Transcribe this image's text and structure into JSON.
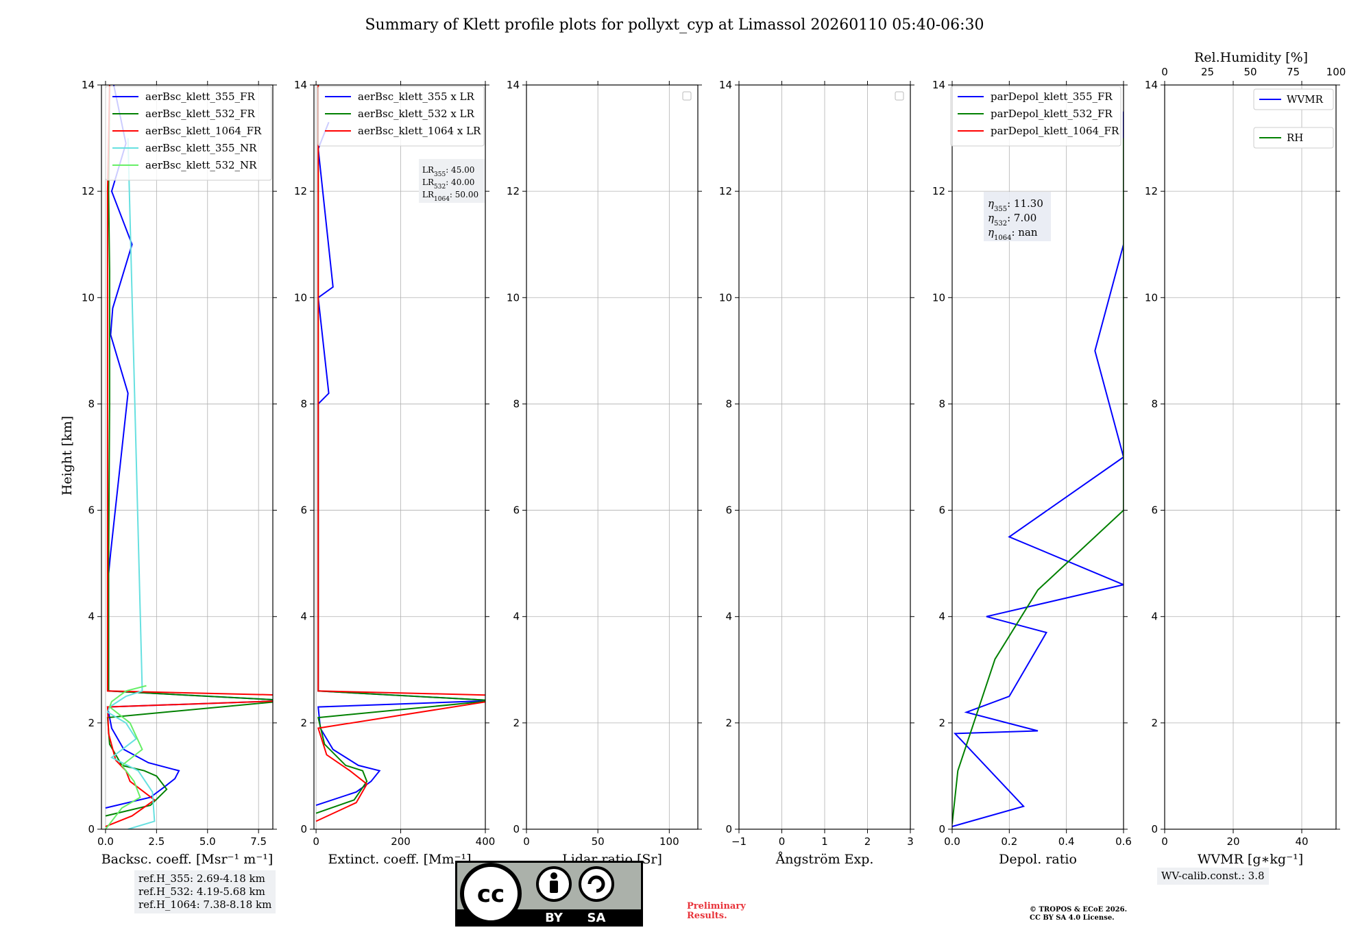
{
  "title": "Summary of Klett profile plots for pollyxt_cyp at Limassol 20260110 05:40-06:30",
  "colors": {
    "c355": "#0000ff",
    "c532": "#008000",
    "c1064": "#ff0000",
    "c355nr": "#66e0e0",
    "c532nr": "#66ee66",
    "grid": "#b0b0b0",
    "wvmr": "#0000ff",
    "rh": "#008000"
  },
  "y_axis": {
    "label": "Height [km]",
    "ylim": [
      0,
      14
    ],
    "ticks": [
      "0",
      "2",
      "4",
      "6",
      "8",
      "10",
      "12",
      "14"
    ]
  },
  "panels": [
    {
      "name": "backscatter",
      "xlabel": "Backsc. coeff. [Msr⁻¹ m⁻¹]",
      "xlim": [
        -0.2,
        8.2
      ],
      "xticks": [
        "0.0",
        "2.5",
        "5.0",
        "7.5"
      ],
      "legend": [
        "aerBsc_klett_355_FR",
        "aerBsc_klett_532_FR",
        "aerBsc_klett_1064_FR",
        "aerBsc_klett_355_NR",
        "aerBsc_klett_532_NR"
      ]
    },
    {
      "name": "extinction",
      "xlabel": "Extinct. coeff. [Mm⁻¹]",
      "xlim": [
        -5,
        400
      ],
      "xticks": [
        "0",
        "200",
        "400"
      ],
      "legend": [
        "aerBsc_klett_355 x LR",
        "aerBsc_klett_532 x LR",
        "aerBsc_klett_1064 x LR"
      ],
      "lr_note": [
        {
          "base": "LR",
          "sub": "355",
          "val": ": 45.00"
        },
        {
          "base": "LR",
          "sub": "532",
          "val": ": 40.00"
        },
        {
          "base": "LR",
          "sub": "1064",
          "val": ": 50.00"
        }
      ]
    },
    {
      "name": "lidar_ratio",
      "xlabel": "Lidar ratio [Sr]",
      "xlim": [
        0,
        120
      ],
      "xticks": [
        "0",
        "50",
        "100"
      ]
    },
    {
      "name": "angstrom",
      "xlabel": "Ångström Exp.",
      "xlim": [
        -1,
        3
      ],
      "xticks": [
        "−1",
        "0",
        "1",
        "2",
        "3"
      ]
    },
    {
      "name": "depol",
      "xlabel": "Depol. ratio",
      "xlim": [
        0,
        0.6
      ],
      "xticks": [
        "0.0",
        "0.2",
        "0.4",
        "0.6"
      ],
      "legend": [
        "parDepol_klett_355_FR",
        "parDepol_klett_532_FR",
        "parDepol_klett_1064_FR"
      ],
      "eta_note": [
        {
          "sub": "355",
          "val": ": 11.30"
        },
        {
          "sub": "532",
          "val": ": 7.00"
        },
        {
          "sub": "1064",
          "val": ": nan"
        }
      ]
    },
    {
      "name": "wvmr",
      "xlabel": "WVMR [g∗kg⁻¹]",
      "xlim": [
        0,
        50
      ],
      "xticks": [
        "0",
        "20",
        "40"
      ],
      "top_label": "Rel.Humidity [%]",
      "top_ticks": [
        "0",
        "25",
        "50",
        "75",
        "100"
      ],
      "legend": [
        "WVMR",
        "RH"
      ]
    }
  ],
  "ref_heights": [
    "ref.H_355: 2.69-4.18 km",
    "ref.H_532: 4.19-5.68 km",
    "ref.H_1064: 7.38-8.18 km"
  ],
  "wv_calib": "WV-calib.const.: 3.8",
  "preliminary": [
    "Preliminary",
    "Results."
  ],
  "copyright": [
    "© TROPOS & ECoE 2026.",
    "CC BY SA 4.0 License."
  ],
  "cc_badge": {
    "by": "BY",
    "sa": "SA",
    "cc": "cc"
  },
  "chart_data": {
    "type": "line",
    "title": "Summary of Klett profile plots for pollyxt_cyp at Limassol 20260110 05:40-06:30",
    "ylabel": "Height [km]",
    "ylim": [
      0,
      14
    ],
    "panels": [
      {
        "name": "backscatter",
        "xlim": [
          -0.2,
          8.2
        ],
        "series": [
          {
            "name": "aerBsc_klett_355_FR",
            "x": [
              0,
              2.2,
              2.9,
              3.4,
              3.6,
              2.1,
              0.9,
              0.3,
              0.1,
              9,
              0.15,
              0.15,
              0.25,
              1.1,
              0.25,
              0.35,
              1.3,
              0.3,
              1.0,
              0.4
            ],
            "y": [
              0.4,
              0.6,
              0.8,
              0.95,
              1.1,
              1.25,
              1.5,
              1.9,
              2.3,
              2.42,
              2.6,
              4.8,
              5.2,
              8.2,
              9.3,
              9.8,
              11.0,
              12.0,
              12.9,
              14
            ]
          },
          {
            "name": "aerBsc_klett_532_FR",
            "x": [
              0,
              2.2,
              3.0,
              2.5,
              1.9,
              0.8,
              0.2,
              0.1,
              9,
              0.15,
              0.15,
              0.2,
              0.2,
              0.15,
              0.2
            ],
            "y": [
              0.25,
              0.45,
              0.75,
              1.0,
              1.1,
              1.2,
              1.6,
              2.1,
              2.42,
              2.6,
              5.0,
              8.0,
              10.5,
              12.0,
              14
            ]
          },
          {
            "name": "aerBsc_klett_1064_FR",
            "x": [
              0,
              1.3,
              2.4,
              1.2,
              1.0,
              0.5,
              0.15,
              0.1,
              9,
              9,
              0.1,
              0.1,
              0.1,
              0.1,
              0.2
            ],
            "y": [
              0.05,
              0.25,
              0.55,
              0.9,
              1.1,
              1.3,
              1.8,
              2.3,
              2.42,
              2.52,
              2.6,
              6.0,
              10.0,
              12.0,
              14
            ]
          },
          {
            "name": "aerBsc_klett_355_NR",
            "x": [
              1.1,
              2.4,
              2.3,
              1.6,
              0.3,
              1.5,
              1.0,
              0.1,
              0.2,
              1.0,
              1.8,
              1.1
            ],
            "y": [
              0.0,
              0.15,
              0.7,
              1.1,
              1.35,
              1.7,
              2.0,
              2.2,
              2.3,
              2.5,
              2.6,
              13.0
            ]
          },
          {
            "name": "aerBsc_klett_532_NR",
            "x": [
              0.0,
              0.8,
              1.7,
              1.4,
              0.8,
              1.8,
              1.2,
              0.2,
              0.3,
              1.0,
              2.0
            ],
            "y": [
              0.0,
              0.4,
              0.6,
              0.9,
              1.2,
              1.5,
              2.0,
              2.3,
              2.4,
              2.6,
              2.7
            ]
          }
        ]
      },
      {
        "name": "extinction",
        "xlim": [
          -5,
          400
        ],
        "series": [
          {
            "name": "aerBsc_klett_355 x LR",
            "x": [
              0,
              95,
              130,
              150,
              100,
              40,
              10,
              5,
              420,
              5,
              5,
              5,
              30,
              5,
              40,
              5,
              30
            ],
            "y": [
              0.45,
              0.7,
              0.9,
              1.1,
              1.2,
              1.5,
              1.9,
              2.3,
              2.42,
              2.6,
              4.8,
              8.0,
              8.2,
              10.0,
              10.2,
              12.8,
              13.3
            ]
          },
          {
            "name": "aerBsc_klett_532 x LR",
            "x": [
              0,
              90,
              120,
              110,
              70,
              20,
              5,
              420,
              5,
              5,
              5
            ],
            "y": [
              0.3,
              0.55,
              0.9,
              1.1,
              1.2,
              1.6,
              2.1,
              2.42,
              2.6,
              8.0,
              14
            ]
          },
          {
            "name": "aerBsc_klett_1064 x LR",
            "x": [
              0,
              95,
              120,
              80,
              25,
              5,
              420,
              420,
              5,
              5
            ],
            "y": [
              0.15,
              0.5,
              0.85,
              1.1,
              1.4,
              1.9,
              2.42,
              2.52,
              2.6,
              14
            ]
          }
        ]
      },
      {
        "name": "lidar_ratio",
        "xlim": [
          0,
          120
        ],
        "series": []
      },
      {
        "name": "angstrom",
        "xlim": [
          -1,
          3
        ],
        "series": []
      },
      {
        "name": "depol",
        "xlim": [
          0,
          0.6
        ],
        "series": [
          {
            "name": "parDepol_klett_355_FR",
            "x": [
              0.0,
              0.25,
              0.01,
              0.3,
              0.05,
              0.2,
              0.33,
              0.12,
              0.6,
              0.2,
              0.6,
              0.5,
              0.6,
              0.6
            ],
            "y": [
              0.05,
              0.43,
              1.8,
              1.85,
              2.2,
              2.5,
              3.7,
              4.0,
              4.6,
              5.5,
              7.0,
              9.0,
              11.0,
              13.5
            ]
          },
          {
            "name": "parDepol_klett_532_FR",
            "x": [
              0.0,
              0.02,
              0.15,
              0.3,
              0.6,
              0.6,
              0.6,
              0.6
            ],
            "y": [
              0.1,
              1.1,
              3.2,
              4.5,
              6.0,
              8.5,
              10.5,
              13.0
            ]
          },
          {
            "name": "parDepol_klett_1064_FR",
            "x": [],
            "y": []
          }
        ]
      },
      {
        "name": "wvmr",
        "xlim": [
          0,
          50
        ],
        "top_xlim": [
          0,
          100
        ],
        "series": []
      }
    ]
  }
}
